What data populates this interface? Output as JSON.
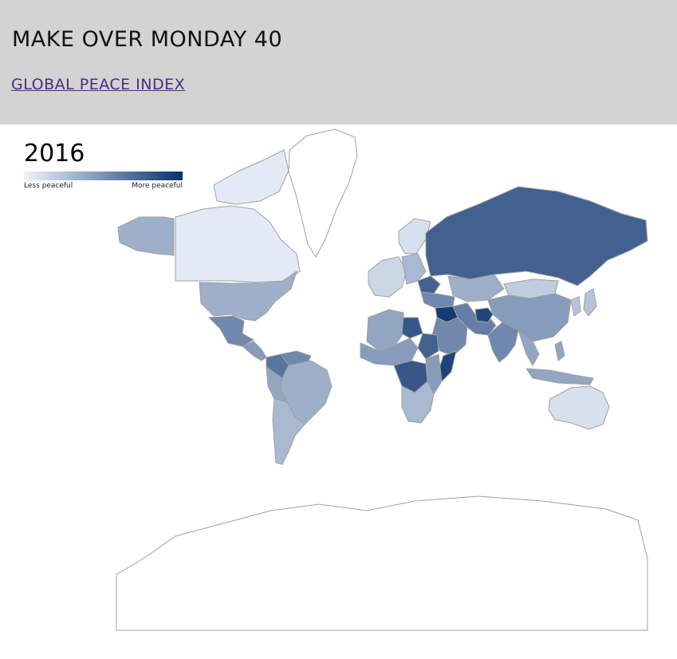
{
  "header": {
    "title": "MAKE OVER MONDAY 40",
    "link_label": "GLOBAL PEACE INDEX"
  },
  "legend": {
    "year": "2016",
    "low_label": "Less peaceful",
    "high_label": "More peaceful",
    "color_low": "#eef4fc",
    "color_high": "#08306b"
  },
  "map": {
    "ocean_color": "#ffffff",
    "border_color": "#a0a0a0",
    "regions": [
      {
        "name": "Canada",
        "level": 0.05
      },
      {
        "name": "Greenland",
        "level": 0.0
      },
      {
        "name": "Alaska",
        "level": 0.35
      },
      {
        "name": "United States",
        "level": 0.35
      },
      {
        "name": "Mexico",
        "level": 0.55
      },
      {
        "name": "Central America",
        "level": 0.45
      },
      {
        "name": "Colombia",
        "level": 0.65
      },
      {
        "name": "Venezuela",
        "level": 0.55
      },
      {
        "name": "Brazil",
        "level": 0.35
      },
      {
        "name": "Andes",
        "level": 0.4
      },
      {
        "name": "Argentina & Chile",
        "level": 0.3
      },
      {
        "name": "Scandinavia",
        "level": 0.1
      },
      {
        "name": "Western Europe",
        "level": 0.15
      },
      {
        "name": "Eastern Europe",
        "level": 0.3
      },
      {
        "name": "Ukraine",
        "level": 0.75
      },
      {
        "name": "Russia",
        "level": 0.75
      },
      {
        "name": "Kazakhstan",
        "level": 0.35
      },
      {
        "name": "Mongolia",
        "level": 0.2
      },
      {
        "name": "China",
        "level": 0.45
      },
      {
        "name": "Japan & Korea",
        "level": 0.25
      },
      {
        "name": "Turkey & Caucasus",
        "level": 0.55
      },
      {
        "name": "Middle East",
        "level": 0.55
      },
      {
        "name": "Syria & Iraq",
        "level": 0.95
      },
      {
        "name": "Afghanistan",
        "level": 0.9
      },
      {
        "name": "Iran & Pakistan",
        "level": 0.6
      },
      {
        "name": "India",
        "level": 0.55
      },
      {
        "name": "Southeast Asia",
        "level": 0.4
      },
      {
        "name": "Indonesia & Philippines",
        "level": 0.4
      },
      {
        "name": "Australia",
        "level": 0.1
      },
      {
        "name": "North Africa",
        "level": 0.4
      },
      {
        "name": "Libya",
        "level": 0.8
      },
      {
        "name": "Sahel",
        "level": 0.45
      },
      {
        "name": "Sudan",
        "level": 0.75
      },
      {
        "name": "Somalia",
        "level": 0.9
      },
      {
        "name": "Central Africa",
        "level": 0.8
      },
      {
        "name": "East Africa",
        "level": 0.45
      },
      {
        "name": "Southern Africa",
        "level": 0.3
      },
      {
        "name": "Antarctica",
        "level": 0.0
      }
    ]
  }
}
